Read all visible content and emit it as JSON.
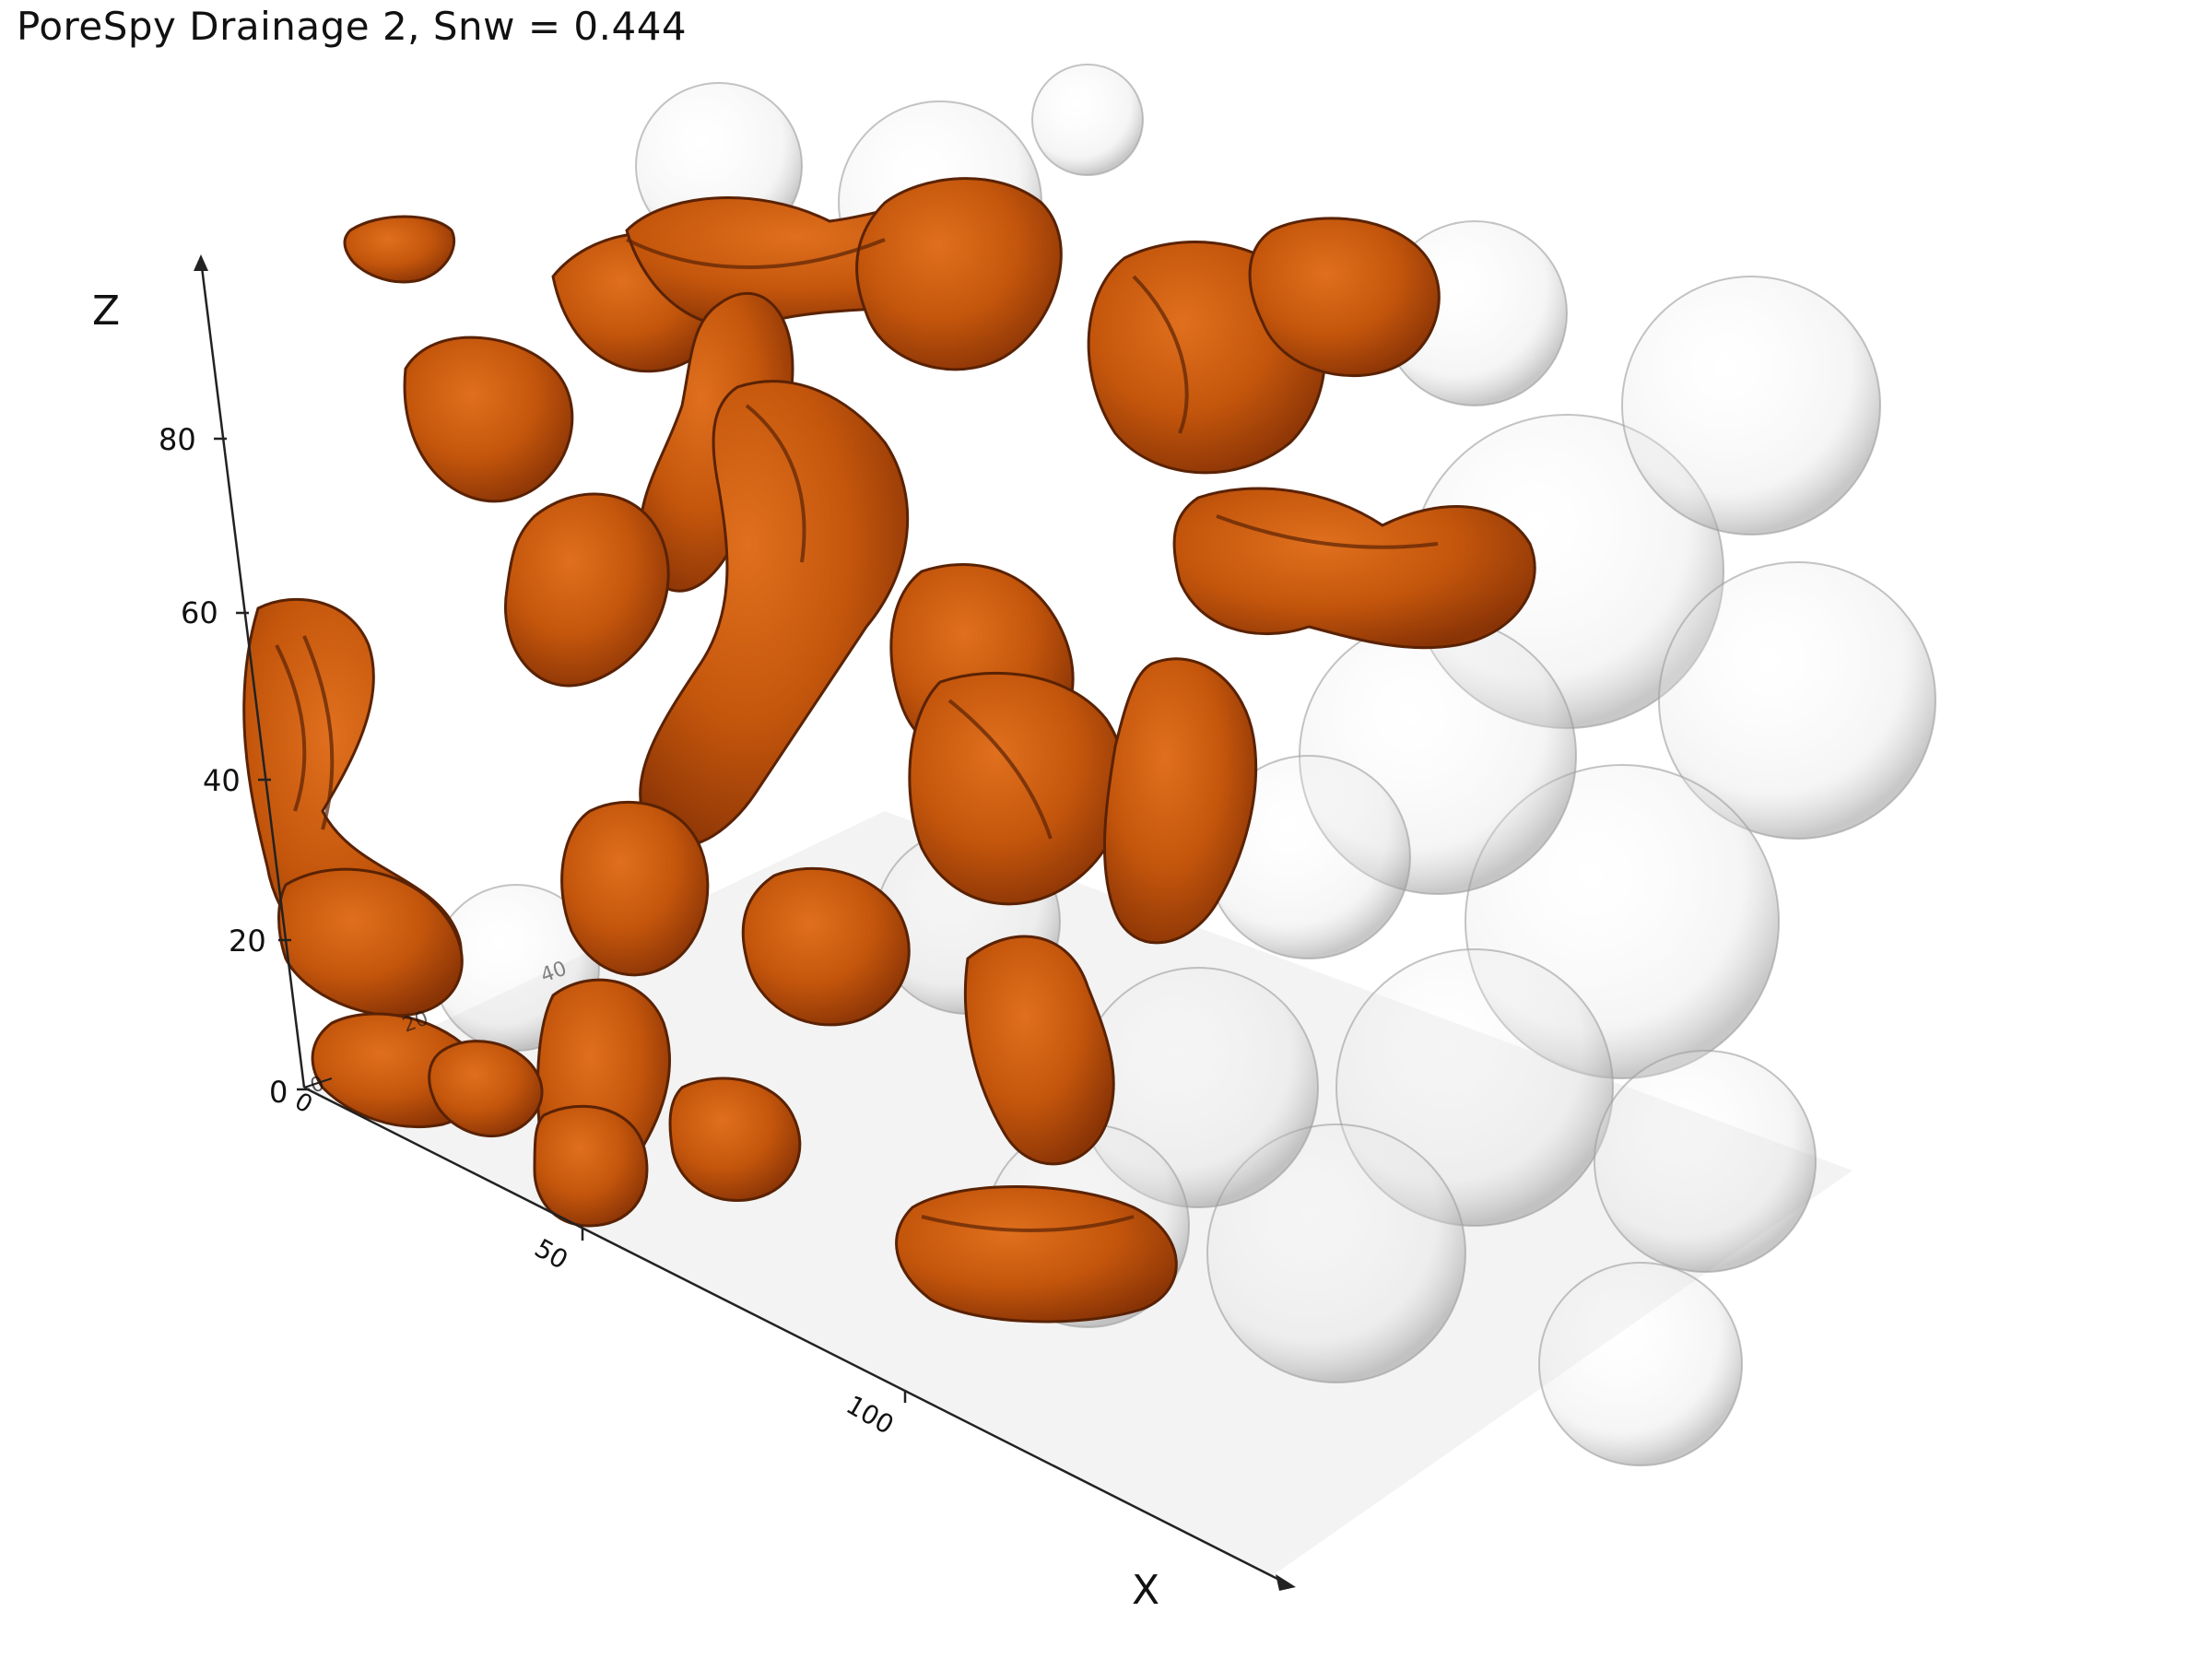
{
  "window": {
    "title": "PoreSpy Drainage 2, Snw = 0.444"
  },
  "axes": {
    "z": {
      "label": "Z",
      "ticks": [
        "80",
        "60",
        "40",
        "20",
        "0"
      ]
    },
    "x": {
      "label": "X",
      "ticks": [
        "0",
        "50",
        "100"
      ]
    },
    "y": {
      "ticks": [
        "0",
        "20",
        "40"
      ]
    }
  },
  "colors": {
    "nonwetting_phase": "#c4560c",
    "nonwetting_shadow": "#7a2e06",
    "solid_phase": "#d9d9d9",
    "floor": "#eeeeee",
    "axis": "#222222"
  }
}
